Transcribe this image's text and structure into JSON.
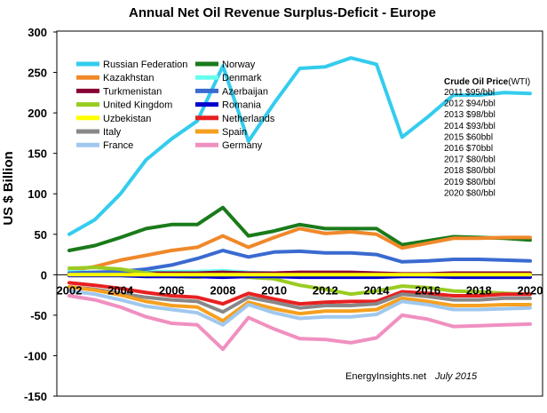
{
  "chart_data": {
    "type": "line",
    "title": "Annual Net Oil Revenue Surplus-Deficit  - Europe",
    "xlabel": "",
    "ylabel": "US $ Billion",
    "xlim": [
      2002,
      2020
    ],
    "ylim": [
      -150,
      300
    ],
    "x_ticks": [
      "2002",
      "2004",
      "2006",
      "2008",
      "2010",
      "2012",
      "2014",
      "2016",
      "2018",
      "2020"
    ],
    "y_ticks": [
      "300",
      "250",
      "200",
      "150",
      "100",
      "50",
      "0",
      "-50",
      "-100",
      "-150"
    ],
    "x": [
      2002,
      2003,
      2004,
      2005,
      2006,
      2007,
      2008,
      2009,
      2010,
      2011,
      2012,
      2013,
      2014,
      2015,
      2016,
      2017,
      2018,
      2019,
      2020
    ],
    "series": [
      {
        "name": "Russian Federation",
        "color": "#33ccee",
        "values": [
          50,
          68,
          100,
          142,
          168,
          190,
          258,
          165,
          212,
          255,
          257,
          268,
          260,
          170,
          195,
          222,
          222,
          225,
          224
        ]
      },
      {
        "name": "Norway",
        "color": "#1a7a1a",
        "values": [
          30,
          36,
          46,
          57,
          62,
          62,
          83,
          48,
          54,
          62,
          57,
          57,
          57,
          37,
          42,
          47,
          46,
          45,
          43
        ]
      },
      {
        "name": "Kazakhstan",
        "color": "#f0882a",
        "values": [
          5,
          10,
          18,
          24,
          30,
          34,
          48,
          34,
          46,
          57,
          51,
          53,
          50,
          33,
          39,
          45,
          45,
          46,
          46
        ]
      },
      {
        "name": "Denmark",
        "color": "#66ffee",
        "values": [
          4,
          3,
          4,
          4,
          4,
          4,
          5,
          3,
          2,
          1,
          0,
          -1,
          -1,
          -1,
          -2,
          -2,
          -2,
          -2,
          -2
        ]
      },
      {
        "name": "Turkmenistan",
        "color": "#880033",
        "values": [
          1,
          1,
          1,
          2,
          2,
          2,
          3,
          2,
          2,
          3,
          3,
          3,
          2,
          1,
          1,
          2,
          2,
          2,
          2
        ]
      },
      {
        "name": "Azerbaijan",
        "color": "#3a6ad0",
        "values": [
          2,
          3,
          4,
          7,
          12,
          20,
          30,
          22,
          28,
          29,
          27,
          27,
          25,
          16,
          17,
          19,
          19,
          18,
          17
        ]
      },
      {
        "name": "United Kingdom",
        "color": "#99cc22",
        "values": [
          8,
          9,
          7,
          2,
          -2,
          -3,
          0,
          -3,
          -5,
          -13,
          -18,
          -24,
          -20,
          -14,
          -16,
          -20,
          -21,
          -23,
          -24
        ]
      },
      {
        "name": "Romania",
        "color": "#0000cc",
        "values": [
          -1,
          -1,
          -1,
          -2,
          -2,
          -2,
          -3,
          -2,
          -2,
          -3,
          -3,
          -3,
          -3,
          -2,
          -2,
          -3,
          -3,
          -3,
          -3
        ]
      },
      {
        "name": "Uzbekistan",
        "color": "#ffff00",
        "values": [
          0,
          0,
          0,
          0,
          0,
          0,
          0,
          0,
          0,
          0,
          0,
          0,
          0,
          0,
          0,
          0,
          0,
          0,
          0
        ]
      },
      {
        "name": "Netherlands",
        "color": "#e82020",
        "values": [
          -10,
          -13,
          -17,
          -22,
          -26,
          -28,
          -36,
          -23,
          -30,
          -36,
          -34,
          -33,
          -33,
          -21,
          -23,
          -26,
          -26,
          -24,
          -24
        ]
      },
      {
        "name": "Italy",
        "color": "#888888",
        "values": [
          -15,
          -18,
          -23,
          -28,
          -31,
          -33,
          -46,
          -28,
          -34,
          -41,
          -38,
          -38,
          -36,
          -24,
          -27,
          -31,
          -31,
          -29,
          -29
        ]
      },
      {
        "name": "Spain",
        "color": "#f5a020",
        "values": [
          -15,
          -19,
          -25,
          -33,
          -38,
          -40,
          -57,
          -34,
          -42,
          -48,
          -45,
          -45,
          -43,
          -29,
          -33,
          -38,
          -38,
          -37,
          -37
        ]
      },
      {
        "name": "France",
        "color": "#a0c8ee",
        "values": [
          -20,
          -24,
          -31,
          -39,
          -43,
          -47,
          -62,
          -37,
          -47,
          -54,
          -52,
          -52,
          -49,
          -33,
          -37,
          -43,
          -43,
          -42,
          -41
        ]
      },
      {
        "name": "Germany",
        "color": "#f090c0",
        "values": [
          -26,
          -31,
          -40,
          -52,
          -60,
          -62,
          -92,
          -53,
          -67,
          -79,
          -80,
          -84,
          -78,
          -50,
          -55,
          -64,
          -63,
          -62,
          -61
        ]
      }
    ],
    "legend": {
      "col1": [
        "Russian Federation",
        "Kazakhstan",
        "Turkmenistan",
        "United Kingdom",
        "Uzbekistan",
        "Italy",
        "France"
      ],
      "col2": [
        "Norway",
        "Denmark",
        "Azerbaijan",
        "Romania",
        "Netherlands",
        "Spain",
        "Germany"
      ]
    },
    "annotation": {
      "heading": "Crude Oil Price",
      "heading_suffix": "(WTI)",
      "lines": [
        "2011 $95/bbl",
        "2012 $94/bbl",
        "2013 $98/bbl",
        "2014 $93/bbl",
        "2015 $60bbl",
        "2016 $70bbl",
        "2017 $80/bbl",
        "2018 $80/bbl",
        "2019 $80/bbl",
        "2020 $80/bbl"
      ]
    },
    "credit": "EnergyInsights.net",
    "credit_date": "July 2015"
  }
}
